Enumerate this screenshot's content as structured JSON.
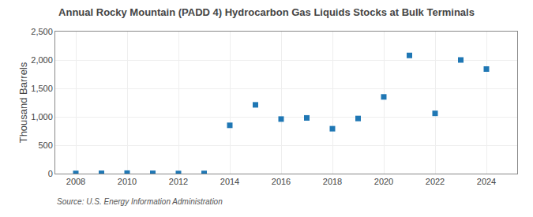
{
  "chart_data": {
    "type": "scatter",
    "title": "Annual Rocky Mountain (PADD 4) Hydrocarbon Gas Liquids Stocks at Bulk Terminals",
    "y_label": "Thousand Barrels",
    "annotations": [
      "Source: U.S. Energy Information Administration"
    ],
    "x": [
      2008,
      2009,
      2010,
      2011,
      2012,
      2013,
      2014,
      2015,
      2016,
      2017,
      2018,
      2019,
      2020,
      2021,
      2022,
      2023,
      2024
    ],
    "values": [
      3,
      5,
      8,
      5,
      2,
      3,
      850,
      1210,
      960,
      980,
      790,
      970,
      1350,
      2080,
      1060,
      2000,
      1840
    ],
    "xlim": [
      2007.2,
      2025.2
    ],
    "xticks": [
      2008,
      2010,
      2012,
      2014,
      2016,
      2018,
      2020,
      2022,
      2024
    ],
    "ylim": [
      0,
      2500
    ],
    "yticks": [
      0,
      500,
      {
        "value": 1000,
        "label": "1,000"
      },
      {
        "value": 1500,
        "label": "1,500"
      },
      {
        "value": 2000,
        "label": "2,000"
      },
      {
        "value": 2500,
        "label": "2,500"
      }
    ],
    "marker": "square",
    "grid": true
  }
}
